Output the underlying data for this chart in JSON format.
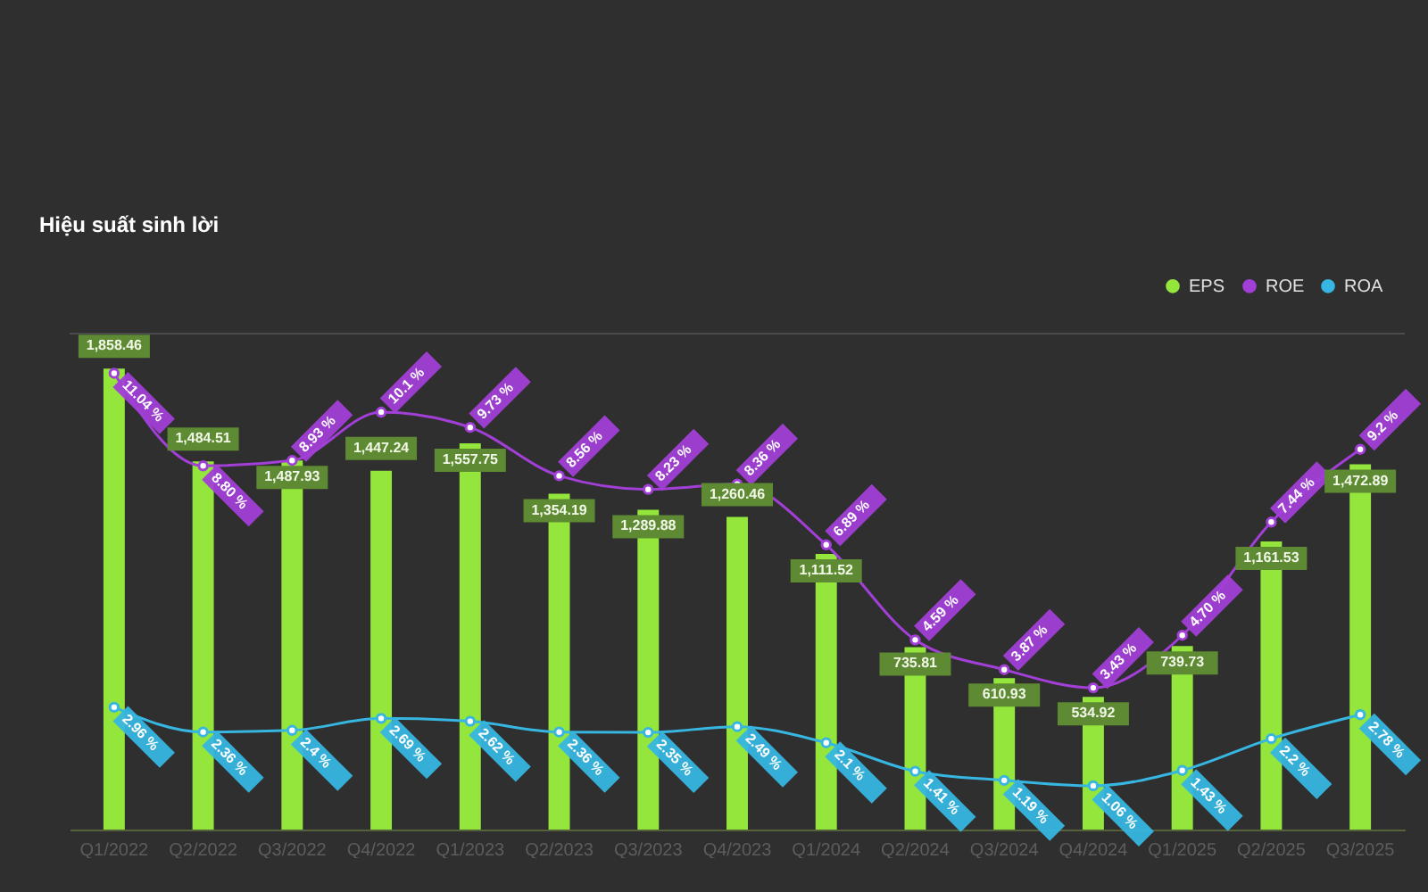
{
  "chart_data": {
    "type": "bar",
    "title": "Hiệu suất sinh lời",
    "categories": [
      "Q1/2022",
      "Q2/2022",
      "Q3/2022",
      "Q4/2022",
      "Q1/2023",
      "Q2/2023",
      "Q3/2023",
      "Q4/2023",
      "Q1/2024",
      "Q2/2024",
      "Q3/2024",
      "Q4/2024",
      "Q1/2025",
      "Q2/2025",
      "Q3/2025"
    ],
    "series": [
      {
        "name": "EPS",
        "type": "bar",
        "color": "#94e63c",
        "values": [
          1858.46,
          1484.51,
          1487.93,
          1447.24,
          1557.75,
          1354.19,
          1289.88,
          1260.46,
          1111.52,
          735.81,
          610.93,
          534.92,
          739.73,
          1161.53,
          1472.89
        ],
        "value_labels": [
          "1,858.46",
          "1,484.51",
          "1,487.93",
          "1,447.24",
          "1,557.75",
          "1,354.19",
          "1,289.88",
          "1,260.46",
          "1,111.52",
          "735.81",
          "610.93",
          "534.92",
          "739.73",
          "1,161.53",
          "1,472.89"
        ]
      },
      {
        "name": "ROE",
        "type": "line",
        "axis": "y2",
        "color": "#a23fd6",
        "values": [
          11.04,
          8.8,
          8.93,
          10.1,
          9.73,
          8.56,
          8.23,
          8.36,
          6.89,
          4.59,
          3.87,
          3.43,
          4.7,
          7.44,
          9.2
        ],
        "value_labels": [
          "11.04 %",
          "8.80 %",
          "8.93 %",
          "10.1 %",
          "9.73 %",
          "8.56 %",
          "8.23 %",
          "8.36 %",
          "6.89 %",
          "4.59 %",
          "3.87 %",
          "3.43 %",
          "4.70 %",
          "7.44 %",
          "9.2 %"
        ]
      },
      {
        "name": "ROA",
        "type": "line",
        "axis": "y2",
        "color": "#36b6e0",
        "values": [
          2.96,
          2.36,
          2.4,
          2.69,
          2.62,
          2.36,
          2.35,
          2.49,
          2.1,
          1.41,
          1.19,
          1.06,
          1.43,
          2.2,
          2.78
        ],
        "value_labels": [
          "2.96 %",
          "2.36 %",
          "2.4 %",
          "2.69 %",
          "2.62 %",
          "2.36 %",
          "2.35 %",
          "2.49 %",
          "2.1 %",
          "1.41 %",
          "1.19 %",
          "1.06 %",
          "1.43 %",
          "2.2 %",
          "2.78 %"
        ]
      }
    ],
    "ylim": [
      0,
      2000
    ],
    "y2lim": [
      0,
      12
    ],
    "tick_labels": "x",
    "legend": "top right",
    "marker": "circle"
  }
}
